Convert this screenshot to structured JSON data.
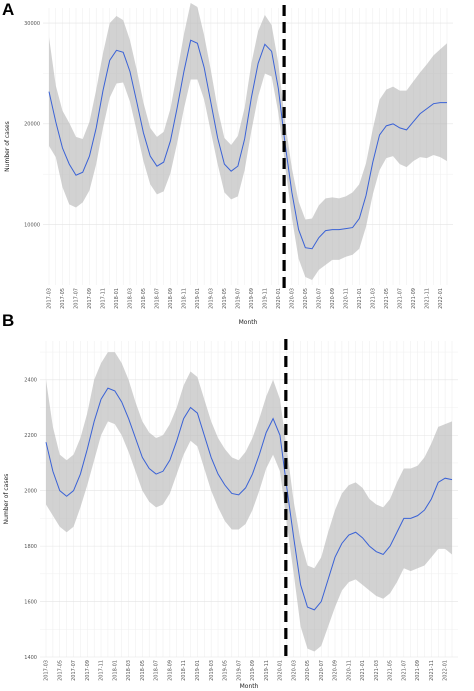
{
  "chart_data": [
    {
      "panel": "A",
      "type": "line",
      "xlabel": "Month",
      "ylabel": "Number of cases",
      "yticks": [
        10000,
        20000,
        30000
      ],
      "ylim": [
        4000,
        31500
      ],
      "grid": true,
      "months": [
        "2017-03",
        "2017-04",
        "2017-05",
        "2017-06",
        "2017-07",
        "2017-08",
        "2017-09",
        "2017-10",
        "2017-11",
        "2017-12",
        "2018-01",
        "2018-02",
        "2018-03",
        "2018-04",
        "2018-05",
        "2018-06",
        "2018-07",
        "2018-08",
        "2018-09",
        "2018-10",
        "2018-11",
        "2018-12",
        "2019-01",
        "2019-02",
        "2019-03",
        "2019-04",
        "2019-05",
        "2019-06",
        "2019-07",
        "2019-08",
        "2019-09",
        "2019-10",
        "2019-11",
        "2019-12",
        "2020-01",
        "2020-02",
        "2020-03",
        "2020-04",
        "2020-05",
        "2020-06",
        "2020-07",
        "2020-08",
        "2020-09",
        "2020-10",
        "2020-11",
        "2020-12",
        "2021-01",
        "2021-02",
        "2021-03",
        "2021-04",
        "2021-05",
        "2021-06",
        "2021-07",
        "2021-08",
        "2021-09",
        "2021-10",
        "2021-11",
        "2021-12",
        "2022-01",
        "2022-02"
      ],
      "tick_labels": [
        "2017-03",
        "2017-05",
        "2017-07",
        "2017-09",
        "2017-11",
        "2018-01",
        "2018-03",
        "2018-05",
        "2018-07",
        "2018-09",
        "2018-11",
        "2019-01",
        "2019-03",
        "2019-05",
        "2019-07",
        "2019-09",
        "2019-11",
        "2020-01",
        "2020-03",
        "2020-05",
        "2020-07",
        "2020-09",
        "2020-11",
        "2021-01",
        "2021-03",
        "2021-05",
        "2021-07",
        "2021-09",
        "2021-11",
        "2022-01"
      ],
      "series": [
        {
          "values": [
            23200,
            20200,
            17600,
            16000,
            14900,
            15200,
            16800,
            19600,
            23300,
            26300,
            27300,
            27100,
            25200,
            22200,
            19100,
            16800,
            15800,
            16200,
            18300,
            21600,
            25200,
            28300,
            28000,
            25600,
            22100,
            18600,
            16000,
            15300,
            15800,
            18500,
            22600,
            26000,
            27900,
            27200,
            23500,
            18000,
            13200,
            9500,
            7700,
            7600,
            8700,
            9400,
            9500,
            9500,
            9600,
            9700,
            10600,
            12900,
            16200,
            18900,
            19800,
            20000,
            19600,
            19400,
            20200,
            21000,
            21500,
            22000,
            22100,
            22100
          ],
          "lower": [
            17800,
            16700,
            13700,
            12000,
            11700,
            12200,
            13400,
            16000,
            19600,
            22600,
            24000,
            24100,
            22200,
            19300,
            16300,
            14000,
            13000,
            13300,
            15100,
            18100,
            21500,
            24400,
            24400,
            22400,
            19200,
            16000,
            13200,
            12500,
            12800,
            15400,
            19300,
            22700,
            25000,
            24700,
            21100,
            15900,
            10700,
            6600,
            4800,
            4500,
            5500,
            6000,
            6500,
            6500,
            6800,
            7000,
            7600,
            9800,
            13000,
            15400,
            16600,
            16800,
            16000,
            15700,
            16300,
            16700,
            16600,
            16900,
            16700,
            16300
          ],
          "upper": [
            28600,
            23800,
            21300,
            20100,
            18700,
            18500,
            20200,
            23400,
            27000,
            30000,
            30700,
            30300,
            28300,
            25400,
            22100,
            19600,
            18700,
            19200,
            21500,
            25100,
            28900,
            32000,
            31600,
            28800,
            25300,
            21500,
            18600,
            17900,
            18800,
            21600,
            26000,
            29200,
            30800,
            29800,
            26000,
            20200,
            15600,
            12300,
            10500,
            10600,
            11900,
            12600,
            12700,
            12600,
            12800,
            13200,
            14000,
            16100,
            19500,
            22400,
            23400,
            23700,
            23300,
            23300,
            24200,
            25100,
            25900,
            26800,
            27400,
            28000
          ]
        }
      ],
      "intervention_month": "2020-02"
    },
    {
      "panel": "B",
      "type": "line",
      "xlabel": "Month",
      "ylabel": "Number of cases",
      "yticks": [
        1400,
        1600,
        1800,
        2000,
        2200,
        2400
      ],
      "ylim": [
        1400,
        2540
      ],
      "grid": true,
      "months": [
        "2017-03",
        "2017-04",
        "2017-05",
        "2017-06",
        "2017-07",
        "2017-08",
        "2017-09",
        "2017-10",
        "2017-11",
        "2017-12",
        "2018-01",
        "2018-02",
        "2018-03",
        "2018-04",
        "2018-05",
        "2018-06",
        "2018-07",
        "2018-08",
        "2018-09",
        "2018-10",
        "2018-11",
        "2018-12",
        "2019-01",
        "2019-02",
        "2019-03",
        "2019-04",
        "2019-05",
        "2019-06",
        "2019-07",
        "2019-08",
        "2019-09",
        "2019-10",
        "2019-11",
        "2019-12",
        "2020-01",
        "2020-02",
        "2020-03",
        "2020-04",
        "2020-05",
        "2020-06",
        "2020-07",
        "2020-08",
        "2020-09",
        "2020-10",
        "2020-11",
        "2020-12",
        "2021-01",
        "2021-02",
        "2021-03",
        "2021-04",
        "2021-05",
        "2021-06",
        "2021-07",
        "2021-08",
        "2021-09",
        "2021-10",
        "2021-11",
        "2021-12",
        "2022-01",
        "2022-02"
      ],
      "tick_labels": [
        "2017-03",
        "2017-05",
        "2017-07",
        "2017-09",
        "2017-11",
        "2018-01",
        "2018-03",
        "2018-05",
        "2018-07",
        "2018-09",
        "2018-11",
        "2019-01",
        "2019-03",
        "2019-05",
        "2019-07",
        "2019-09",
        "2019-11",
        "2020-01",
        "2020-03",
        "2020-05",
        "2020-07",
        "2020-09",
        "2020-11",
        "2021-01",
        "2021-03",
        "2021-05",
        "2021-07",
        "2021-09",
        "2021-11",
        "2022-01"
      ],
      "series": [
        {
          "values": [
            2175,
            2070,
            2000,
            1980,
            2000,
            2060,
            2150,
            2250,
            2330,
            2370,
            2360,
            2320,
            2260,
            2190,
            2120,
            2080,
            2060,
            2070,
            2110,
            2180,
            2260,
            2300,
            2280,
            2200,
            2120,
            2060,
            2020,
            1990,
            1985,
            2010,
            2060,
            2130,
            2210,
            2260,
            2200,
            2010,
            1830,
            1660,
            1580,
            1570,
            1600,
            1680,
            1760,
            1810,
            1840,
            1850,
            1830,
            1800,
            1780,
            1770,
            1800,
            1850,
            1900,
            1900,
            1910,
            1930,
            1970,
            2030,
            2045,
            2040
          ],
          "lower": [
            1950,
            1910,
            1870,
            1850,
            1870,
            1940,
            2020,
            2110,
            2200,
            2250,
            2240,
            2200,
            2140,
            2070,
            2000,
            1960,
            1940,
            1950,
            1990,
            2060,
            2130,
            2180,
            2160,
            2080,
            2000,
            1940,
            1890,
            1860,
            1860,
            1880,
            1930,
            2000,
            2080,
            2130,
            2070,
            1880,
            1700,
            1510,
            1430,
            1420,
            1440,
            1510,
            1580,
            1640,
            1670,
            1680,
            1660,
            1640,
            1620,
            1610,
            1630,
            1670,
            1720,
            1710,
            1720,
            1730,
            1760,
            1790,
            1790,
            1770
          ],
          "upper": [
            2400,
            2230,
            2130,
            2110,
            2130,
            2190,
            2280,
            2400,
            2460,
            2500,
            2500,
            2460,
            2400,
            2320,
            2250,
            2210,
            2190,
            2200,
            2240,
            2300,
            2380,
            2430,
            2410,
            2330,
            2250,
            2190,
            2150,
            2120,
            2110,
            2140,
            2190,
            2260,
            2340,
            2400,
            2330,
            2150,
            1960,
            1820,
            1730,
            1720,
            1760,
            1850,
            1930,
            1990,
            2020,
            2030,
            2010,
            1970,
            1950,
            1940,
            1970,
            2030,
            2080,
            2080,
            2090,
            2120,
            2170,
            2230,
            2240,
            2250
          ]
        }
      ],
      "intervention_month": "2020-02"
    }
  ]
}
